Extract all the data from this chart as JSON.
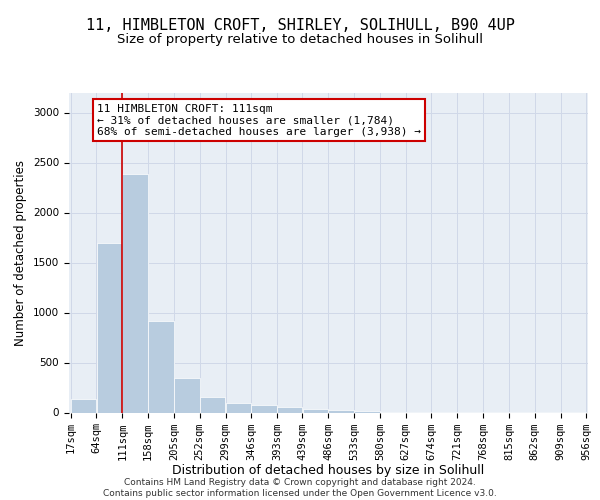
{
  "title1": "11, HIMBLETON CROFT, SHIRLEY, SOLIHULL, B90 4UP",
  "title2": "Size of property relative to detached houses in Solihull",
  "xlabel": "Distribution of detached houses by size in Solihull",
  "ylabel": "Number of detached properties",
  "bar_edges": [
    17,
    64,
    111,
    158,
    205,
    252,
    299,
    346,
    393,
    439,
    486,
    533,
    580,
    627,
    674,
    721,
    768,
    815,
    862,
    909,
    956
  ],
  "bar_values": [
    140,
    1700,
    2390,
    920,
    350,
    160,
    95,
    75,
    55,
    35,
    22,
    15,
    10,
    6,
    4,
    3,
    2,
    2,
    1,
    1
  ],
  "bar_color": "#b8ccdf",
  "bar_edge_color": "#ffffff",
  "vline_x": 111,
  "vline_color": "#cc0000",
  "annotation_text": "11 HIMBLETON CROFT: 111sqm\n← 31% of detached houses are smaller (1,784)\n68% of semi-detached houses are larger (3,938) →",
  "annotation_box_color": "#ffffff",
  "annotation_box_edge_color": "#cc0000",
  "grid_color": "#d0d8e8",
  "bg_color": "#e8eef5",
  "ylim": [
    0,
    3200
  ],
  "yticks": [
    0,
    500,
    1000,
    1500,
    2000,
    2500,
    3000
  ],
  "footer": "Contains HM Land Registry data © Crown copyright and database right 2024.\nContains public sector information licensed under the Open Government Licence v3.0.",
  "title1_fontsize": 11,
  "title2_fontsize": 9.5,
  "xlabel_fontsize": 9,
  "ylabel_fontsize": 8.5,
  "tick_fontsize": 7.5,
  "footer_fontsize": 6.5
}
